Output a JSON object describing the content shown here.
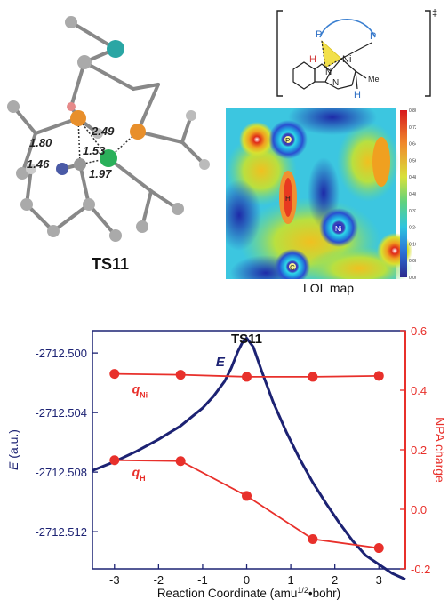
{
  "figure": {
    "ts_label": "TS11",
    "lol_caption": "LOL map",
    "distances": [
      "2.49",
      "1.80",
      "1.53",
      "1.46",
      "1.97"
    ],
    "scheme": {
      "dagger": "‡",
      "atom_P": "P",
      "atom_Ni": "Ni",
      "atom_H": "H",
      "atom_N": "N",
      "methyl": "Me"
    },
    "lol_colorbar": {
      "ticks": [
        "0.80",
        "0.72",
        "0.64",
        "0.56",
        "0.48",
        "0.40",
        "0.32",
        "0.24",
        "0.16",
        "0.08",
        "0.00"
      ]
    },
    "lol_atoms": [
      "P",
      "H",
      "Ni",
      "C"
    ]
  },
  "chart_data": {
    "type": "line",
    "title": "TS11",
    "xlabel": "Reaction Coordinate (amu1/2•bohr)",
    "xlabel_parts": {
      "main": "Reaction Coordinate (amu",
      "sup": "1/2",
      "tail": "•bohr)"
    },
    "ylabel_left": "E (a.u.)",
    "ylabel_right": "NPA charge",
    "xlim": [
      -3.5,
      3.6
    ],
    "ylim_left": [
      -2712.5145,
      -2712.4985
    ],
    "ylim_right": [
      -0.2,
      0.6
    ],
    "x_ticks": [
      "-3",
      "-2",
      "-1",
      "0",
      "1",
      "2",
      "3"
    ],
    "y_left_ticks": [
      "-2712.500",
      "-2712.504",
      "-2712.508",
      "-2712.512"
    ],
    "y_right_ticks": [
      "0.6",
      "0.4",
      "0.2",
      "0.0",
      "-0.2"
    ],
    "colors": {
      "energy": "#1c2273",
      "charge": "#e8302b",
      "axis": "#1c2273"
    },
    "series": [
      {
        "name": "E",
        "axis": "left",
        "x": [
          -3.5,
          -3.0,
          -2.5,
          -2.0,
          -1.5,
          -1.0,
          -0.75,
          -0.5,
          -0.35,
          -0.2,
          -0.1,
          0.0,
          0.15,
          0.35,
          0.6,
          0.9,
          1.2,
          1.5,
          1.8,
          2.1,
          2.4,
          2.7,
          3.0,
          3.3,
          3.6
        ],
        "y": [
          -2712.5079,
          -2712.5073,
          -2712.5066,
          -2712.5058,
          -2712.5049,
          -2712.5037,
          -2712.5029,
          -2712.5019,
          -2712.501,
          -2712.4999,
          -2712.4993,
          -2712.499,
          -2712.4996,
          -2712.5013,
          -2712.5033,
          -2712.5053,
          -2712.5071,
          -2712.5087,
          -2712.5101,
          -2712.5114,
          -2712.5126,
          -2712.5136,
          -2712.5142,
          -2712.5148,
          -2712.5152
        ]
      },
      {
        "name": "qNi",
        "label_main": "q",
        "label_sub": "Ni",
        "axis": "right",
        "x": [
          -3,
          -1.5,
          0,
          1.5,
          3
        ],
        "y": [
          0.455,
          0.452,
          0.445,
          0.445,
          0.448
        ]
      },
      {
        "name": "qH",
        "label_main": "q",
        "label_sub": "H",
        "axis": "right",
        "x": [
          -3,
          -1.5,
          0,
          1.5,
          3
        ],
        "y": [
          0.165,
          0.162,
          0.045,
          -0.1,
          -0.13
        ]
      }
    ],
    "grid": false,
    "legend": "inline labels"
  }
}
